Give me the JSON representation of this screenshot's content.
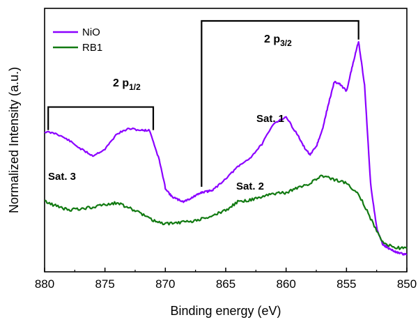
{
  "chart_data": {
    "type": "line",
    "xlabel": "Binding energy (eV)",
    "ylabel": "Normalized Intensity (a.u.)",
    "xlim": [
      880,
      850
    ],
    "x_reversed": true,
    "ylim": [
      0,
      1
    ],
    "y_ticks_shown": false,
    "grid": false,
    "legend_placement": "top-left",
    "x_ticks": [
      {
        "value": 880,
        "label": "880"
      },
      {
        "value": 875,
        "label": "875"
      },
      {
        "value": 870,
        "label": "870"
      },
      {
        "value": 865,
        "label": "865"
      },
      {
        "value": 860,
        "label": "860"
      },
      {
        "value": 855,
        "label": "855"
      },
      {
        "value": 850,
        "label": "850"
      }
    ],
    "series": [
      {
        "name": "NiO",
        "color": "#8B00FF",
        "x": [
          880,
          879,
          878,
          877,
          876,
          875,
          874,
          873,
          872,
          871.3,
          870.5,
          870,
          869.5,
          869,
          868.5,
          868,
          867.5,
          867,
          866.5,
          866,
          865,
          864,
          863,
          862,
          861,
          860,
          859,
          858.5,
          858,
          857.5,
          857,
          856.5,
          856,
          855.5,
          855,
          854.5,
          854,
          853.5,
          853,
          852.5,
          852,
          851.5,
          851,
          850.5,
          850
        ],
        "y": [
          0.543,
          0.535,
          0.508,
          0.472,
          0.444,
          0.471,
          0.535,
          0.556,
          0.549,
          0.549,
          0.426,
          0.311,
          0.277,
          0.264,
          0.255,
          0.266,
          0.279,
          0.293,
          0.297,
          0.305,
          0.35,
          0.398,
          0.434,
          0.492,
          0.579,
          0.604,
          0.526,
          0.478,
          0.448,
          0.482,
          0.55,
          0.656,
          0.75,
          0.737,
          0.711,
          0.815,
          0.917,
          0.734,
          0.327,
          0.148,
          0.079,
          0.062,
          0.049,
          0.041,
          0.036
        ]
      },
      {
        "name": "RB1",
        "color": "#127A12",
        "x": [
          880,
          879,
          878,
          877,
          876,
          875,
          874,
          873,
          872,
          871,
          870,
          869,
          868,
          867,
          866,
          865,
          864,
          863,
          862,
          861,
          860,
          859,
          858,
          857,
          856,
          855,
          854,
          853,
          852,
          851,
          850
        ],
        "y": [
          0.257,
          0.236,
          0.221,
          0.225,
          0.232,
          0.241,
          0.25,
          0.229,
          0.206,
          0.178,
          0.162,
          0.169,
          0.171,
          0.184,
          0.2,
          0.219,
          0.254,
          0.262,
          0.273,
          0.288,
          0.291,
          0.313,
          0.33,
          0.363,
          0.345,
          0.33,
          0.288,
          0.185,
          0.087,
          0.065,
          0.062
        ]
      }
    ],
    "annotations": {
      "p12_main": "2 p",
      "p12_sub": "1/2",
      "p32_main": "2 p",
      "p32_sub": "3/2",
      "sat1": "Sat. 1",
      "sat2": "Sat. 2",
      "sat3": "Sat. 3"
    },
    "brackets": [
      {
        "label": "2 p1/2",
        "x_from": 879.7,
        "x_to": 871.0,
        "y_top": 0.645,
        "y_bottom": 0.55
      },
      {
        "label": "2 p3/2",
        "x_from": 867.0,
        "x_to": 854.0,
        "y_top": 1.0,
        "y_bottom_left": 0.316,
        "y_bottom_right": 0.923
      }
    ]
  }
}
